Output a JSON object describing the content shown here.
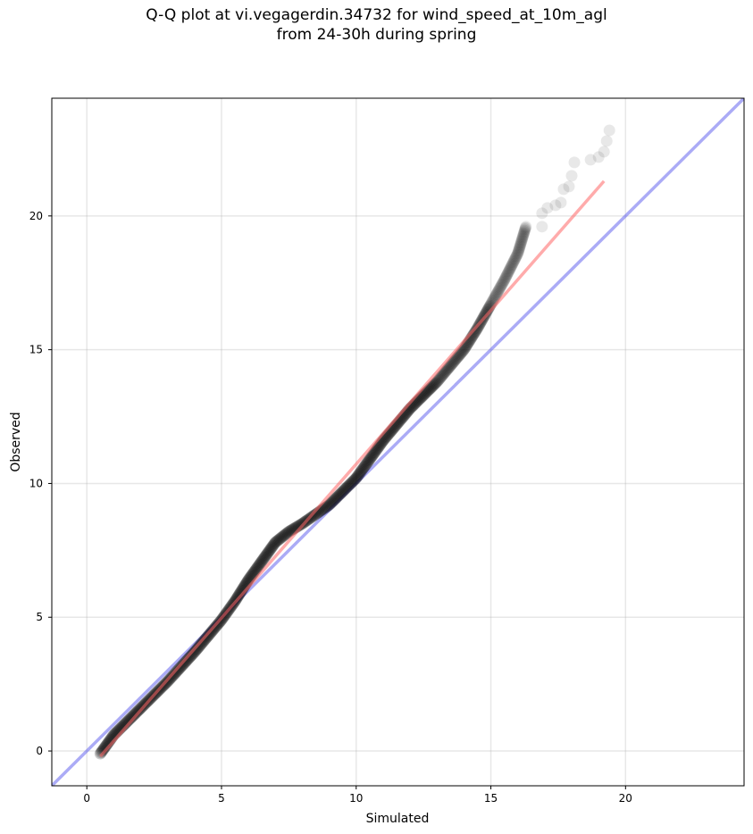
{
  "chart_data": {
    "type": "scatter",
    "title": "Q-Q plot at vi.vegagerdin.34732 for wind_speed_at_10m_agl",
    "subtitle": "from 24-30h during spring",
    "xlabel": "Simulated",
    "ylabel": "Observed",
    "xlim": [
      -1.3,
      24.4
    ],
    "ylim": [
      -1.3,
      24.4
    ],
    "xticks": [
      0,
      5,
      10,
      15,
      20
    ],
    "yticks": [
      0,
      5,
      10,
      15,
      20
    ],
    "grid": true,
    "quantile_knots": [
      [
        0.5,
        -0.1
      ],
      [
        1.0,
        0.6
      ],
      [
        2.0,
        1.6
      ],
      [
        3.0,
        2.6
      ],
      [
        4.0,
        3.7
      ],
      [
        5.0,
        4.9
      ],
      [
        5.5,
        5.6
      ],
      [
        6.0,
        6.4
      ],
      [
        6.5,
        7.1
      ],
      [
        7.0,
        7.8
      ],
      [
        7.5,
        8.2
      ],
      [
        8.0,
        8.5
      ],
      [
        9.0,
        9.2
      ],
      [
        10.0,
        10.2
      ],
      [
        11.0,
        11.6
      ],
      [
        12.0,
        12.8
      ],
      [
        13.0,
        13.8
      ],
      [
        14.0,
        15.0
      ],
      [
        14.5,
        15.8
      ],
      [
        15.0,
        16.7
      ],
      [
        15.5,
        17.6
      ],
      [
        16.0,
        18.6
      ],
      [
        16.3,
        19.6
      ]
    ],
    "tail_points": [
      [
        16.3,
        19.6
      ],
      [
        16.9,
        19.6
      ],
      [
        16.9,
        20.1
      ],
      [
        17.1,
        20.3
      ],
      [
        17.4,
        20.4
      ],
      [
        17.6,
        20.5
      ],
      [
        17.7,
        21.0
      ],
      [
        17.9,
        21.1
      ],
      [
        18.0,
        21.5
      ],
      [
        18.1,
        22.0
      ],
      [
        18.7,
        22.1
      ],
      [
        19.0,
        22.2
      ],
      [
        19.2,
        22.4
      ],
      [
        19.3,
        22.8
      ],
      [
        19.4,
        23.2
      ]
    ],
    "fit_line": {
      "x": [
        0.5,
        19.2
      ],
      "y": [
        -0.2,
        21.3
      ],
      "color": "#ff6666"
    },
    "identity_line": {
      "x": [
        -1.3,
        24.4
      ],
      "y": [
        -1.3,
        24.4
      ],
      "color": "#6666ee"
    },
    "point_color": "#000000",
    "point_density_note_color": "#1a1a7a"
  }
}
